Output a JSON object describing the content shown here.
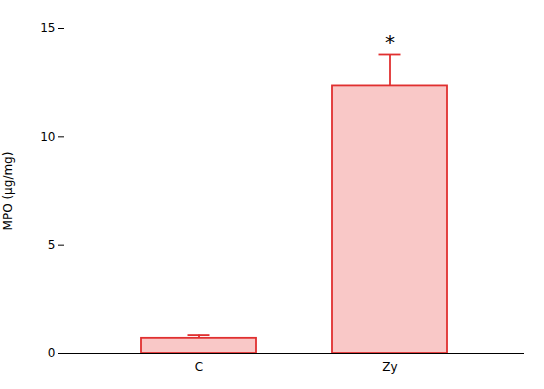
{
  "chart_data": {
    "type": "bar",
    "categories": [
      "C",
      "Zy"
    ],
    "values": [
      0.7,
      12.35
    ],
    "errors_upper": [
      0.15,
      1.45
    ],
    "colors": [
      "#f9c8c7",
      "#f9c8c7"
    ],
    "color": "#e03030",
    "ylabel": "MPO (μg/mg)",
    "ylim": [
      0,
      15
    ],
    "yticks": [
      0,
      5,
      10,
      15
    ],
    "annotations": [
      {
        "text": "*",
        "category": "Zy"
      }
    ]
  }
}
